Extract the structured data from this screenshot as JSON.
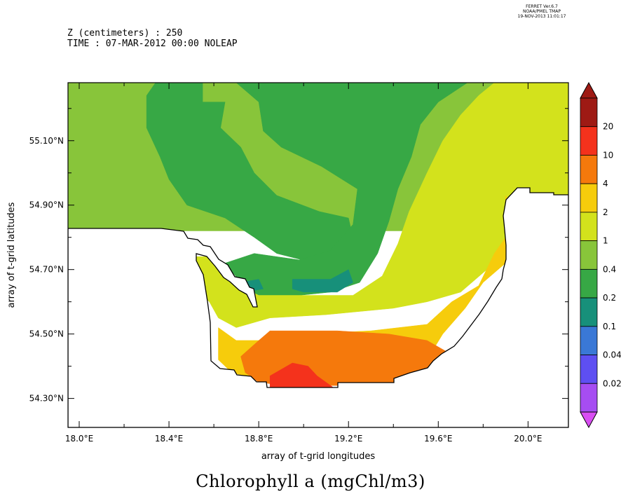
{
  "header": {
    "line1": "Z (centimeters) : 250",
    "line2": "TIME : 07-MAR-2012 00:00 NOLEAP"
  },
  "ferret": {
    "line1": "FERRET  Ver.6.7",
    "line2": "NOAA/PMEL TMAP",
    "line3": "19-NOV-2013 11:01:17"
  },
  "chart_data": {
    "type": "heatmap",
    "title": "Chlorophyll a (mgChl/m3)",
    "xlabel": "array of t-grid longitudes",
    "ylabel": "array of t-grid latitudes",
    "xlim": [
      17.95,
      20.18
    ],
    "ylim": [
      54.21,
      55.28
    ],
    "x_ticks": [
      {
        "value": 18.0,
        "label": "18.0°E"
      },
      {
        "value": 18.4,
        "label": "18.4°E"
      },
      {
        "value": 18.8,
        "label": "18.8°E"
      },
      {
        "value": 19.2,
        "label": "19.2°E"
      },
      {
        "value": 19.6,
        "label": "19.6°E"
      },
      {
        "value": 20.0,
        "label": "20.0°E"
      }
    ],
    "y_ticks": [
      {
        "value": 54.3,
        "label": "54.30°N"
      },
      {
        "value": 54.5,
        "label": "54.50°N"
      },
      {
        "value": 54.7,
        "label": "54.70°N"
      },
      {
        "value": 54.9,
        "label": "54.90°N"
      },
      {
        "value": 55.1,
        "label": "55.10°N"
      }
    ],
    "colorbar": {
      "levels": [
        "0.02",
        "0.04",
        "0.1",
        "0.2",
        "0.4",
        "1",
        "2",
        "4",
        "10",
        "20"
      ],
      "colors": [
        "#a64df2",
        "#5e4ff2",
        "#3a78d6",
        "#17907a",
        "#37a845",
        "#88c53a",
        "#d3e21c",
        "#f6cc0c",
        "#f5790c",
        "#f4321c",
        "#9e1a14"
      ],
      "under_color": "#d84ef2",
      "over_color": "#9e1a14"
    },
    "regions": [
      {
        "class": "0.4-1",
        "color": "#88c53a",
        "polygon": [
          [
            17.95,
            55.28
          ],
          [
            20.18,
            55.28
          ],
          [
            20.18,
            54.82
          ],
          [
            17.95,
            54.82
          ]
        ]
      },
      {
        "class": "0.2-0.4",
        "color": "#37a845",
        "polygon": [
          [
            18.34,
            55.28
          ],
          [
            18.55,
            55.28
          ],
          [
            18.55,
            55.22
          ],
          [
            18.65,
            55.22
          ],
          [
            18.63,
            55.14
          ],
          [
            18.72,
            55.08
          ],
          [
            18.78,
            55.0
          ],
          [
            18.88,
            54.93
          ],
          [
            19.07,
            54.88
          ],
          [
            19.2,
            54.86
          ],
          [
            19.22,
            54.8
          ],
          [
            19.18,
            54.74
          ],
          [
            19.05,
            54.72
          ],
          [
            18.88,
            54.75
          ],
          [
            18.78,
            54.8
          ],
          [
            18.65,
            54.86
          ],
          [
            18.48,
            54.9
          ],
          [
            18.4,
            54.98
          ],
          [
            18.36,
            55.05
          ],
          [
            18.3,
            55.14
          ],
          [
            18.3,
            55.24
          ]
        ]
      },
      {
        "class": "0.2-0.4",
        "color": "#37a845",
        "polygon": [
          [
            18.7,
            55.28
          ],
          [
            19.73,
            55.28
          ],
          [
            19.6,
            55.22
          ],
          [
            19.52,
            55.15
          ],
          [
            19.48,
            55.05
          ],
          [
            19.42,
            54.95
          ],
          [
            19.38,
            54.85
          ],
          [
            19.33,
            54.75
          ],
          [
            19.25,
            54.66
          ],
          [
            19.12,
            54.63
          ],
          [
            18.98,
            54.62
          ],
          [
            18.82,
            54.6
          ],
          [
            18.72,
            54.66
          ],
          [
            18.65,
            54.72
          ],
          [
            18.78,
            54.75
          ],
          [
            18.98,
            54.73
          ],
          [
            19.12,
            54.76
          ],
          [
            19.22,
            54.84
          ],
          [
            19.24,
            54.95
          ],
          [
            19.08,
            55.02
          ],
          [
            18.9,
            55.08
          ],
          [
            18.82,
            55.13
          ],
          [
            18.8,
            55.22
          ]
        ]
      },
      {
        "class": "0.1-0.2",
        "color": "#17907a",
        "polygon": [
          [
            18.95,
            54.67
          ],
          [
            19.12,
            54.67
          ],
          [
            19.2,
            54.7
          ],
          [
            19.22,
            54.66
          ],
          [
            19.15,
            54.63
          ],
          [
            19.0,
            54.63
          ],
          [
            18.95,
            54.64
          ]
        ]
      },
      {
        "class": "0.1-0.2",
        "color": "#17907a",
        "polygon": [
          [
            18.72,
            54.66
          ],
          [
            18.8,
            54.67
          ],
          [
            18.82,
            54.64
          ],
          [
            18.74,
            54.63
          ]
        ]
      },
      {
        "class": "1-2",
        "color": "#d3e21c",
        "polygon": [
          [
            19.85,
            55.28
          ],
          [
            20.18,
            55.28
          ],
          [
            20.18,
            54.82
          ],
          [
            19.96,
            54.82
          ],
          [
            19.85,
            54.72
          ],
          [
            19.7,
            54.63
          ],
          [
            19.55,
            54.6
          ],
          [
            19.4,
            54.58
          ],
          [
            19.1,
            54.56
          ],
          [
            18.85,
            54.55
          ],
          [
            18.7,
            54.52
          ],
          [
            18.62,
            54.55
          ],
          [
            18.58,
            54.6
          ],
          [
            18.52,
            54.64
          ],
          [
            18.52,
            54.74
          ],
          [
            18.6,
            54.74
          ],
          [
            18.68,
            54.66
          ],
          [
            18.8,
            54.62
          ],
          [
            19.02,
            54.62
          ],
          [
            19.22,
            54.62
          ],
          [
            19.35,
            54.68
          ],
          [
            19.42,
            54.78
          ],
          [
            19.47,
            54.88
          ],
          [
            19.55,
            55.0
          ],
          [
            19.62,
            55.1
          ],
          [
            19.7,
            55.18
          ],
          [
            19.78,
            55.24
          ]
        ]
      },
      {
        "class": "2-4",
        "color": "#f6cc0c",
        "polygon": [
          [
            18.62,
            54.52
          ],
          [
            18.7,
            54.48
          ],
          [
            18.8,
            54.48
          ],
          [
            19.0,
            54.5
          ],
          [
            19.3,
            54.51
          ],
          [
            19.55,
            54.53
          ],
          [
            19.66,
            54.6
          ],
          [
            19.78,
            54.65
          ],
          [
            19.85,
            54.75
          ],
          [
            19.96,
            54.86
          ],
          [
            19.9,
            54.93
          ],
          [
            19.9,
            54.72
          ],
          [
            19.8,
            54.66
          ],
          [
            19.72,
            54.58
          ],
          [
            19.62,
            54.5
          ],
          [
            19.55,
            54.42
          ],
          [
            19.2,
            54.36
          ],
          [
            18.8,
            54.36
          ],
          [
            18.68,
            54.38
          ],
          [
            18.62,
            54.42
          ]
        ]
      },
      {
        "class": "4-10",
        "color": "#f5790c",
        "polygon": [
          [
            18.72,
            54.43
          ],
          [
            18.8,
            54.48
          ],
          [
            18.85,
            54.51
          ],
          [
            19.15,
            54.51
          ],
          [
            19.38,
            54.5
          ],
          [
            19.55,
            54.48
          ],
          [
            19.65,
            54.44
          ],
          [
            19.7,
            54.42
          ],
          [
            19.55,
            54.38
          ],
          [
            19.4,
            54.35
          ],
          [
            19.17,
            54.34
          ],
          [
            18.92,
            54.34
          ],
          [
            18.8,
            54.35
          ],
          [
            18.74,
            54.38
          ]
        ]
      },
      {
        "class": "10-20",
        "color": "#f4321c",
        "polygon": [
          [
            18.85,
            54.33
          ],
          [
            18.85,
            54.37
          ],
          [
            18.9,
            54.39
          ],
          [
            18.95,
            54.41
          ],
          [
            19.02,
            54.4
          ],
          [
            19.06,
            54.37
          ],
          [
            19.14,
            54.33
          ]
        ]
      }
    ]
  }
}
